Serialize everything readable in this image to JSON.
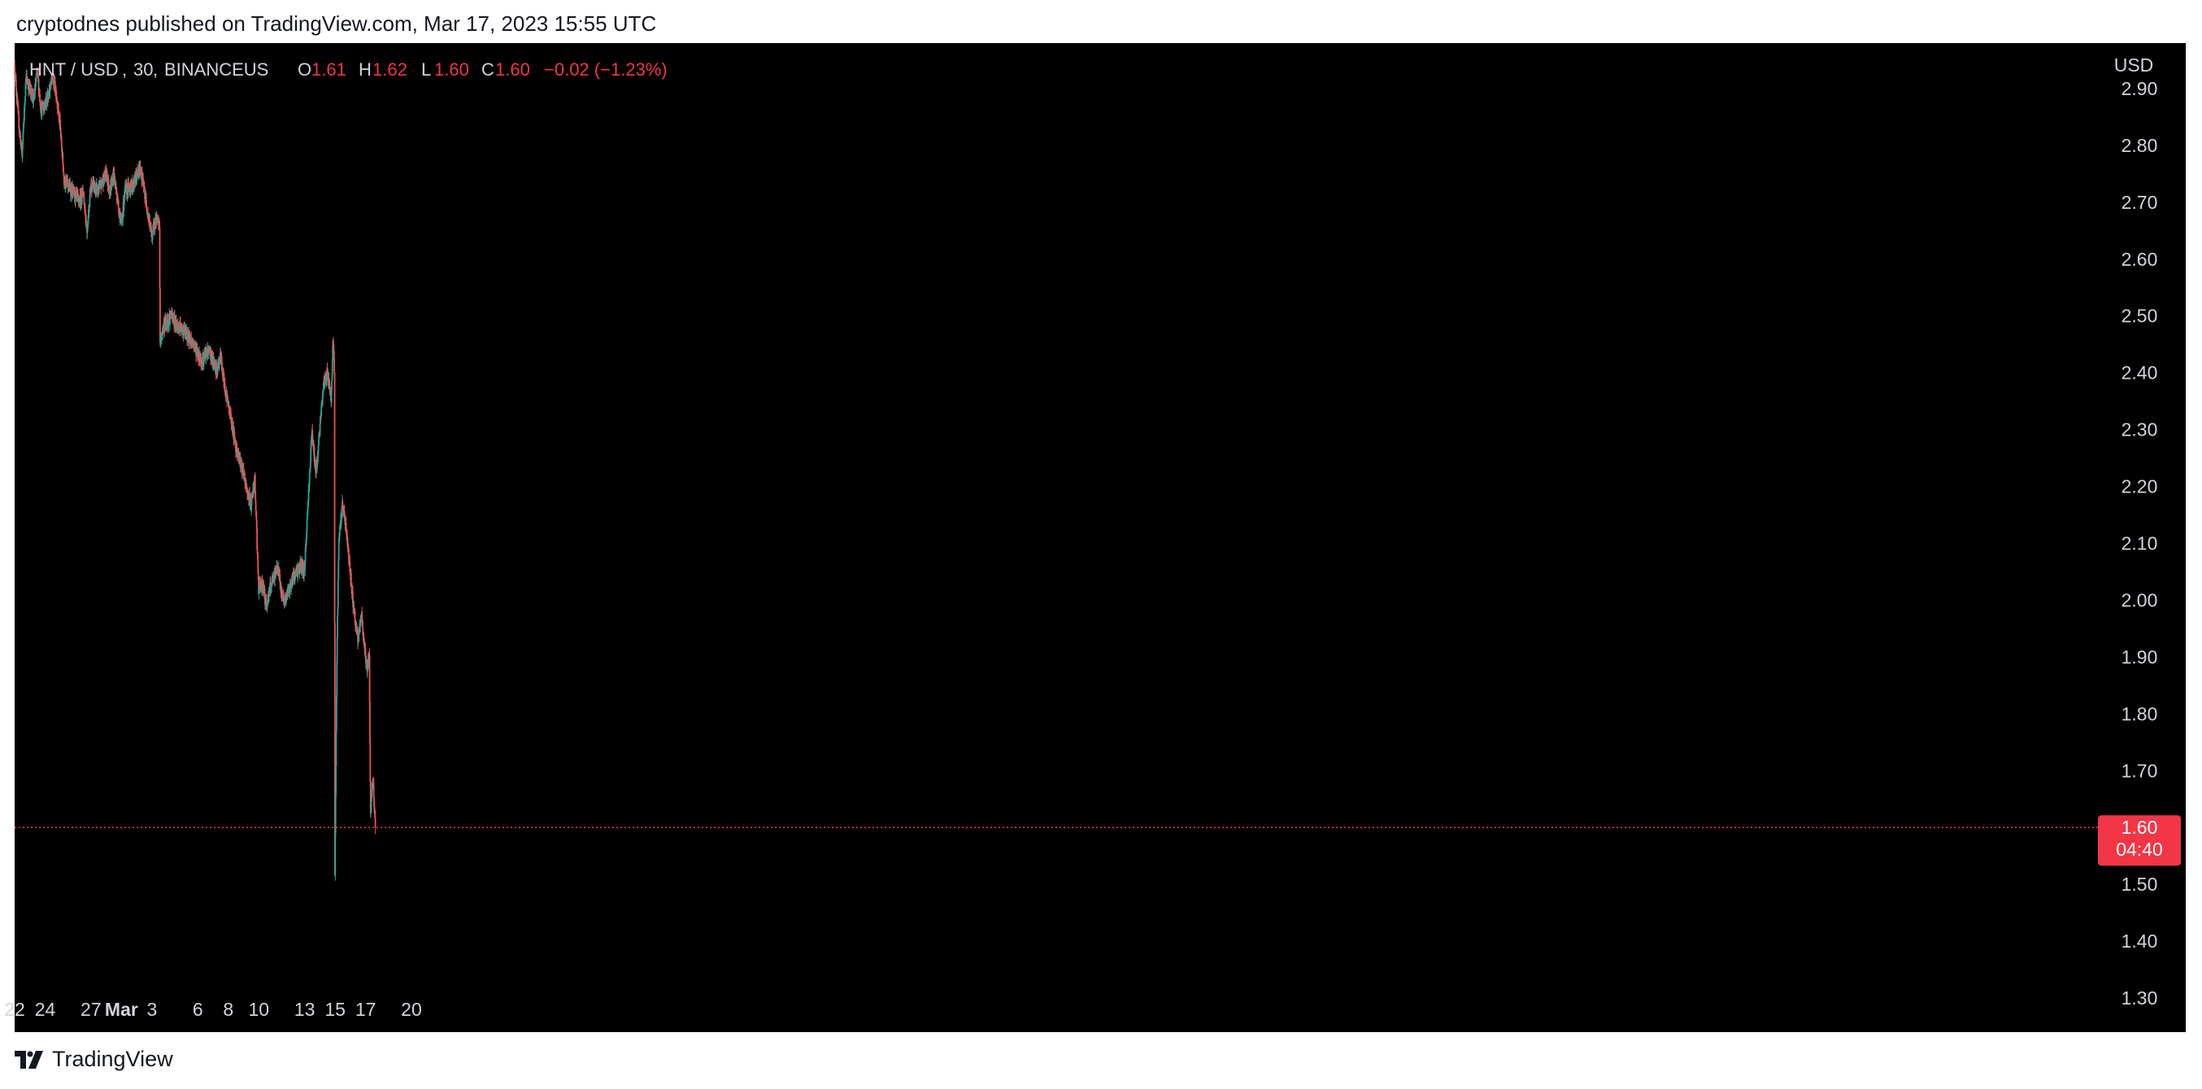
{
  "header": {
    "published_text": "cryptodnes published on TradingView.com, Mar 17, 2023 15:55 UTC"
  },
  "footer": {
    "brand": "TradingView",
    "logo_icon": "tradingview-logo-icon"
  },
  "colors": {
    "background": "#000000",
    "up": "#26a69a",
    "down": "#ef5350",
    "axis_text": "#d1d4dc",
    "price_tag": "#f23645"
  },
  "chart_data": {
    "type": "candlestick",
    "symbol": "HNT / USD",
    "interval": "30",
    "exchange": "BINANCEUS",
    "ohlc": {
      "o": "1.61",
      "h": "1.62",
      "l": "1.60",
      "c": "1.60",
      "change": "−0.02 (−1.23%)"
    },
    "currency": "USD",
    "y_ticks": [
      "2.90",
      "2.80",
      "2.70",
      "2.60",
      "2.50",
      "2.40",
      "2.30",
      "2.20",
      "2.10",
      "2.00",
      "1.90",
      "1.80",
      "1.70",
      "1.60",
      "1.50",
      "1.40",
      "1.30"
    ],
    "x_ticks": [
      "22",
      "24",
      "27",
      "Mar",
      "3",
      "6",
      "8",
      "10",
      "13",
      "15",
      "17",
      "20"
    ],
    "current_price": "1.60",
    "countdown": "04:40",
    "ylim": [
      1.24,
      2.98
    ],
    "price_path": [
      [
        "02-22T00:00",
        2.94
      ],
      [
        "02-22T06:00",
        2.85
      ],
      [
        "02-22T12:00",
        2.78
      ],
      [
        "02-22T18:00",
        2.92
      ],
      [
        "02-23T06:00",
        2.88
      ],
      [
        "02-23T12:00",
        2.93
      ],
      [
        "02-23T18:00",
        2.86
      ],
      [
        "02-24T06:00",
        2.89
      ],
      [
        "02-24T12:00",
        2.92
      ],
      [
        "02-24T18:00",
        2.89
      ],
      [
        "02-25T00:00",
        2.83
      ],
      [
        "02-25T06:00",
        2.74
      ],
      [
        "02-25T18:00",
        2.72
      ],
      [
        "02-26T06:00",
        2.7
      ],
      [
        "02-26T12:00",
        2.72
      ],
      [
        "02-26T18:00",
        2.65
      ],
      [
        "02-27T00:00",
        2.73
      ],
      [
        "02-27T12:00",
        2.72
      ],
      [
        "02-28T00:00",
        2.75
      ],
      [
        "02-28T06:00",
        2.72
      ],
      [
        "02-28T12:00",
        2.75
      ],
      [
        "03-01T00:00",
        2.66
      ],
      [
        "03-01T06:00",
        2.72
      ],
      [
        "03-01T18:00",
        2.73
      ],
      [
        "03-02T06:00",
        2.76
      ],
      [
        "03-02T12:00",
        2.72
      ],
      [
        "03-02T18:00",
        2.68
      ],
      [
        "03-03T00:00",
        2.64
      ],
      [
        "03-03T06:00",
        2.67
      ],
      [
        "03-03T12:00",
        2.66
      ],
      [
        "03-03T13:00",
        2.45
      ],
      [
        "03-03T18:00",
        2.48
      ],
      [
        "03-04T06:00",
        2.5
      ],
      [
        "03-04T18:00",
        2.48
      ],
      [
        "03-05T06:00",
        2.47
      ],
      [
        "03-05T18:00",
        2.45
      ],
      [
        "03-06T06:00",
        2.42
      ],
      [
        "03-06T18:00",
        2.44
      ],
      [
        "03-07T06:00",
        2.4
      ],
      [
        "03-07T12:00",
        2.43
      ],
      [
        "03-07T18:00",
        2.38
      ],
      [
        "03-08T06:00",
        2.31
      ],
      [
        "03-08T12:00",
        2.27
      ],
      [
        "03-08T18:00",
        2.25
      ],
      [
        "03-09T06:00",
        2.19
      ],
      [
        "03-09T12:00",
        2.17
      ],
      [
        "03-09T18:00",
        2.21
      ],
      [
        "03-10T00:00",
        2.02
      ],
      [
        "03-10T06:00",
        2.03
      ],
      [
        "03-10T12:00",
        1.99
      ],
      [
        "03-10T18:00",
        2.02
      ],
      [
        "03-11T06:00",
        2.06
      ],
      [
        "03-11T12:00",
        2.01
      ],
      [
        "03-11T18:00",
        2.0
      ],
      [
        "03-12T06:00",
        2.04
      ],
      [
        "03-12T18:00",
        2.06
      ],
      [
        "03-13T00:00",
        2.05
      ],
      [
        "03-13T06:00",
        2.18
      ],
      [
        "03-13T12:00",
        2.3
      ],
      [
        "03-13T18:00",
        2.22
      ],
      [
        "03-14T06:00",
        2.38
      ],
      [
        "03-14T12:00",
        2.4
      ],
      [
        "03-14T18:00",
        2.35
      ],
      [
        "03-14T21:00",
        2.46
      ],
      [
        "03-14T23:00",
        2.4
      ],
      [
        "03-15T00:00",
        1.52
      ],
      [
        "03-15T03:00",
        1.9
      ],
      [
        "03-15T06:00",
        2.1
      ],
      [
        "03-15T12:00",
        2.17
      ],
      [
        "03-15T18:00",
        2.12
      ],
      [
        "03-16T06:00",
        1.98
      ],
      [
        "03-16T12:00",
        1.93
      ],
      [
        "03-16T18:00",
        1.97
      ],
      [
        "03-17T00:00",
        1.9
      ],
      [
        "03-17T03:00",
        1.88
      ],
      [
        "03-17T06:00",
        1.9
      ],
      [
        "03-17T08:00",
        1.62
      ],
      [
        "03-17T10:00",
        1.66
      ],
      [
        "03-17T12:00",
        1.68
      ],
      [
        "03-17T15:00",
        1.61
      ]
    ]
  }
}
